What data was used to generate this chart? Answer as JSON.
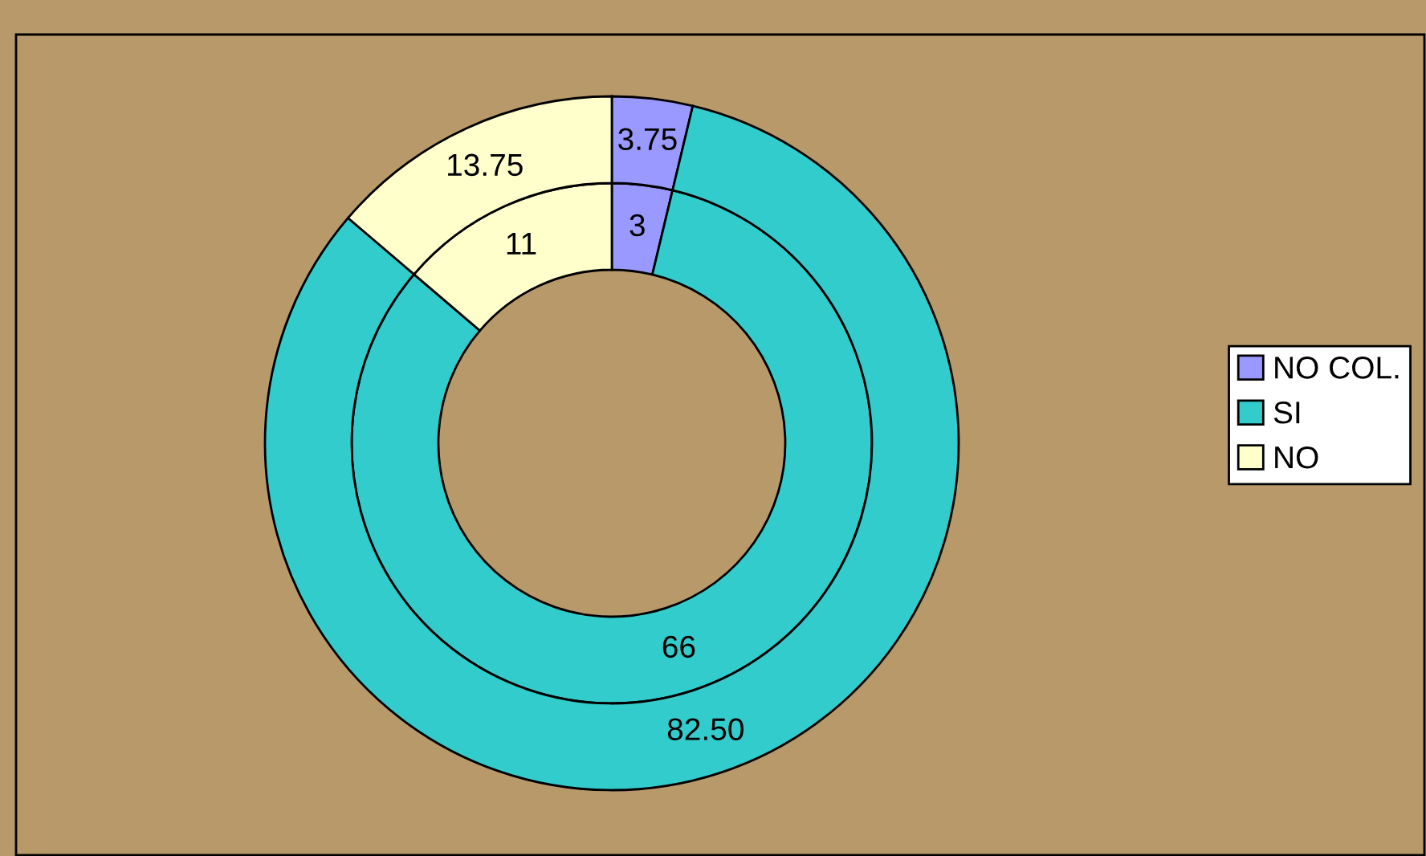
{
  "chart_data": {
    "type": "donut",
    "categories": [
      "NO COL.",
      "SI",
      "NO"
    ],
    "colors": [
      "#9999ff",
      "#33cccc",
      "#ffffcc"
    ],
    "series": [
      {
        "values": [
          3,
          66,
          11
        ],
        "value_labels": [
          "3",
          "66",
          "11"
        ]
      },
      {
        "values": [
          3.75,
          82.5,
          13.75
        ],
        "value_labels": [
          "3.75",
          "82.50",
          "13.75"
        ]
      }
    ],
    "legend": "right"
  }
}
